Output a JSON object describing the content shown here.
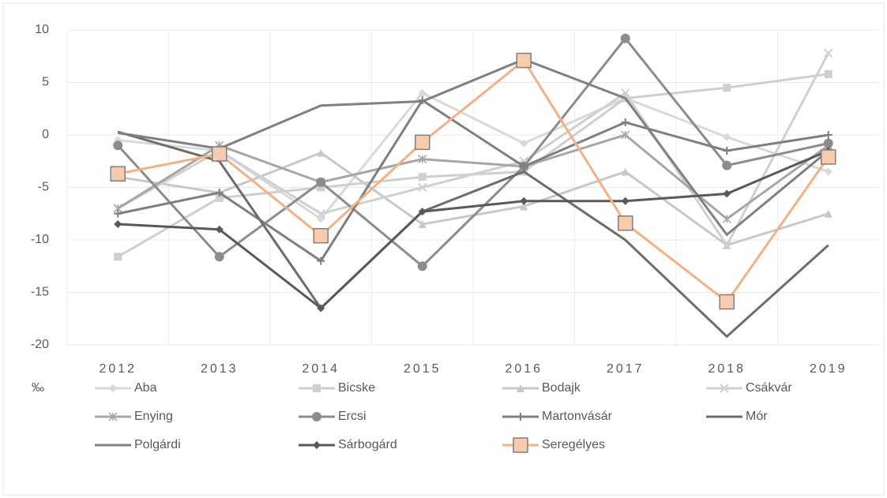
{
  "chart_data": {
    "type": "line",
    "y_unit": "‰",
    "categories": [
      "2012",
      "2013",
      "2014",
      "2015",
      "2016",
      "2017",
      "2018",
      "2019"
    ],
    "ylim": [
      -20,
      10
    ],
    "yticks": [
      -20,
      -15,
      -10,
      -5,
      0,
      5,
      10
    ],
    "grid": true,
    "legend": "bottom",
    "series": [
      {
        "name": "Aba",
        "color": "#d9d9d9",
        "marker": "diamond",
        "values": [
          -0.5,
          -1.5,
          -8,
          4,
          -0.8,
          3.5,
          -0.2,
          -3.5
        ]
      },
      {
        "name": "Bicske",
        "color": "#cfcfcf",
        "marker": "square",
        "values": [
          -11.6,
          -6,
          -5,
          -4,
          -3.5,
          3.5,
          4.5,
          5.8
        ]
      },
      {
        "name": "Bodajk",
        "color": "#c8c8c8",
        "marker": "triangle",
        "values": [
          -4,
          -5.5,
          -1.7,
          -8.5,
          -6.8,
          -3.5,
          -10.5,
          -7.5
        ]
      },
      {
        "name": "Csákvár",
        "color": "#d0d0d0",
        "marker": "x",
        "values": [
          -7,
          -1.5,
          -7.5,
          -5,
          -2.5,
          4,
          -10.5,
          7.8
        ]
      },
      {
        "name": "Enying",
        "color": "#a6a6a6",
        "marker": "star",
        "values": [
          -7,
          -1,
          -4.5,
          -2.3,
          -3,
          0,
          -8,
          -1
        ]
      },
      {
        "name": "Ercsi",
        "color": "#8c8c8c",
        "marker": "circle",
        "values": [
          -1,
          -11.6,
          -4.5,
          -12.5,
          -3,
          9.2,
          -2.9,
          -0.8
        ]
      },
      {
        "name": "Martonvásár",
        "color": "#7f7f7f",
        "marker": "plus",
        "values": [
          -7.5,
          -5.5,
          -12,
          3.3,
          -3,
          1.2,
          -1.5,
          0
        ]
      },
      {
        "name": "Mór",
        "color": "#6d6d6d",
        "marker": "none",
        "values": [
          0.3,
          -2.5,
          -16.5,
          -7.3,
          -3.5,
          -10,
          -19.2,
          -10.5
        ]
      },
      {
        "name": "Polgárdi",
        "color": "#808080",
        "marker": "none",
        "values": [
          0.2,
          -1.3,
          2.8,
          3.2,
          7.2,
          3.5,
          -9.5,
          -1.5
        ]
      },
      {
        "name": "Sárbogárd",
        "color": "#595959",
        "marker": "diamond",
        "values": [
          -8.5,
          -9,
          -16.5,
          -7.3,
          -6.3,
          -6.3,
          -5.6,
          -1.5
        ]
      },
      {
        "name": "Seregélyes",
        "color": "#f4b183",
        "marker": "bigsquare",
        "values": [
          -3.7,
          -1.8,
          -9.6,
          -0.7,
          7.1,
          -8.4,
          -15.9,
          -2.1
        ]
      }
    ]
  }
}
